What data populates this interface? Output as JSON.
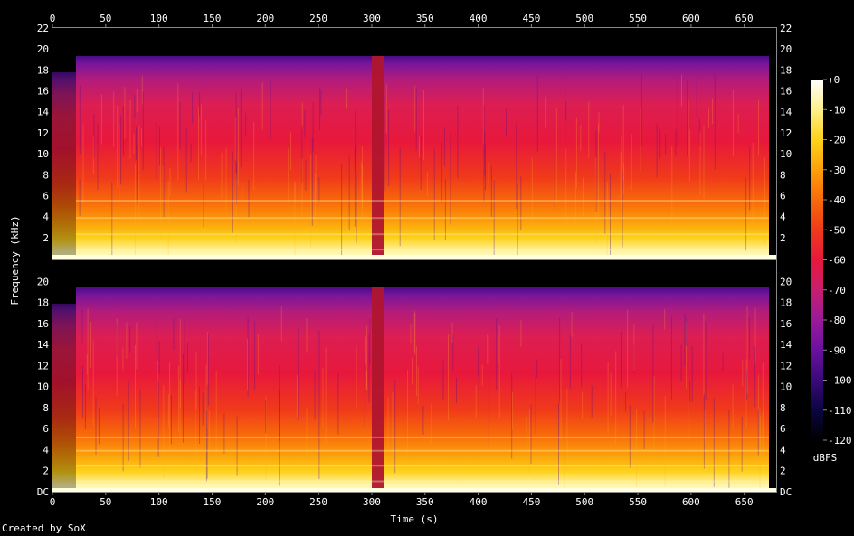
{
  "chart_data": {
    "type": "heatmap",
    "title": "",
    "xlabel": "Time (s)",
    "ylabel": "Frequency (kHz)",
    "x_ticks": [
      "0",
      "50",
      "100",
      "150",
      "200",
      "250",
      "300",
      "350",
      "400",
      "450",
      "500",
      "550",
      "600",
      "650"
    ],
    "y_ticks_top": [
      "2",
      "4",
      "6",
      "8",
      "10",
      "12",
      "14",
      "16",
      "18",
      "20",
      "22"
    ],
    "y_ticks_bottom": [
      "DC",
      "2",
      "4",
      "6",
      "8",
      "10",
      "12",
      "14",
      "16",
      "18",
      "20"
    ],
    "xlim": [
      0,
      680
    ],
    "ylim_khz": [
      0,
      22
    ],
    "duration_s": 672,
    "channels": 2,
    "lowpass_khz": 19,
    "gap_interval_s": [
      299,
      310
    ],
    "onset_s": 22,
    "colorbar": {
      "label": "dBFS",
      "ticks": [
        "+0",
        "-10",
        "-20",
        "-30",
        "-40",
        "-50",
        "-60",
        "-70",
        "-80",
        "-90",
        "-100",
        "-110",
        "-120"
      ],
      "range": [
        -120,
        0
      ]
    },
    "colors": {
      "background": "#000000",
      "palette": [
        "#000000",
        "#0a0540",
        "#3a0a7a",
        "#6a10a0",
        "#9a1a9a",
        "#c81e6e",
        "#e8183c",
        "#f03a1a",
        "#f86a0a",
        "#fca00a",
        "#fdd21a",
        "#fff08a",
        "#ffffff"
      ]
    }
  },
  "footer": {
    "credit": "Created by SoX"
  }
}
